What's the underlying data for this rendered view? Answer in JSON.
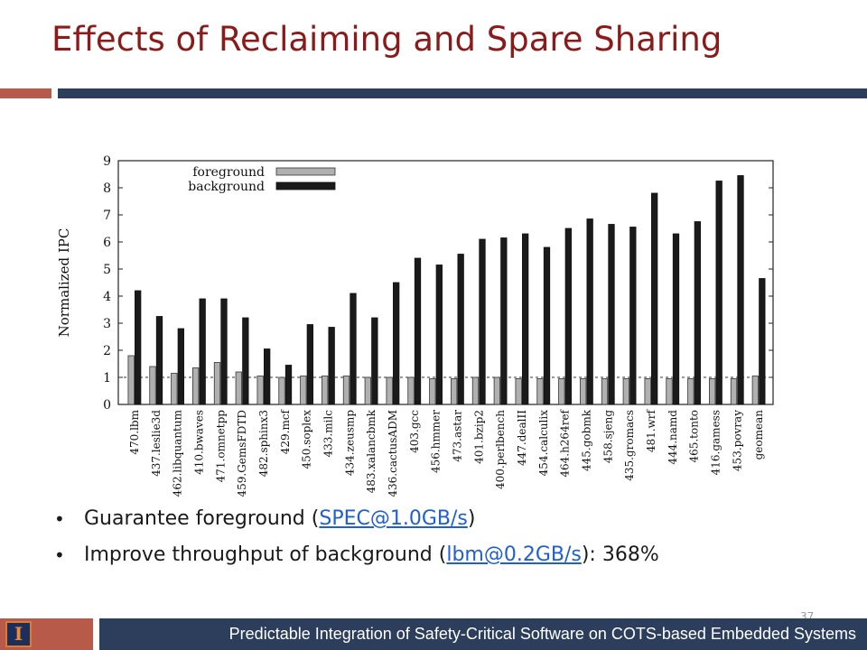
{
  "slide": {
    "title": "Effects of Reclaiming and Spare Sharing",
    "page_number": "37",
    "footer": "Predictable Integration of Safety-Critical Software on COTS-based Embedded Systems",
    "logo_letter": "I"
  },
  "bullets": [
    {
      "prefix": "Guarantee foreground (",
      "link": "SPEC@1.0GB/s",
      "suffix": ")"
    },
    {
      "prefix": "Improve throughput of background (",
      "link": "lbm@0.2GB/s",
      "suffix": "): 368%"
    }
  ],
  "colors": {
    "title": "#8b1a1a",
    "accent_red": "#b85a4a",
    "accent_blue": "#2c3e5c",
    "foreground_bar": "#b0b0b0",
    "background_bar": "#1a1a1a"
  },
  "chart_data": {
    "type": "bar",
    "ylabel": "Normalized IPC",
    "ylim": [
      0,
      9
    ],
    "yticks": [
      0,
      1,
      2,
      3,
      4,
      5,
      6,
      7,
      8,
      9
    ],
    "reference_line": 1,
    "legend_position": "top-left",
    "categories": [
      "470.lbm",
      "437.leslie3d",
      "462.libquantum",
      "410.bwaves",
      "471.omnetpp",
      "459.GemsFDTD",
      "482.sphinx3",
      "429.mcf",
      "450.soplex",
      "433.milc",
      "434.zeusmp",
      "483.xalancbmk",
      "436.cactusADM",
      "403.gcc",
      "456.hmmer",
      "473.astar",
      "401.bzip2",
      "400.perlbench",
      "447.dealII",
      "454.calculix",
      "464.h264ref",
      "445.gobmk",
      "458.sjeng",
      "435.gromacs",
      "481.wrf",
      "444.namd",
      "465.tonto",
      "416.gamess",
      "453.povray",
      "geomean"
    ],
    "series": [
      {
        "name": "foreground",
        "values": [
          1.8,
          1.4,
          1.15,
          1.35,
          1.55,
          1.2,
          1.05,
          1.0,
          1.05,
          1.05,
          1.05,
          1.0,
          1.0,
          1.0,
          0.95,
          0.95,
          1.0,
          1.0,
          0.95,
          0.95,
          0.95,
          0.95,
          0.95,
          0.95,
          0.95,
          0.95,
          0.95,
          0.95,
          0.95,
          1.05
        ]
      },
      {
        "name": "background",
        "values": [
          4.2,
          3.25,
          2.8,
          3.9,
          3.9,
          3.2,
          2.05,
          1.45,
          2.95,
          2.85,
          4.1,
          3.2,
          4.5,
          5.4,
          5.15,
          5.55,
          6.1,
          6.15,
          6.3,
          5.8,
          6.5,
          6.85,
          6.65,
          6.55,
          7.8,
          6.3,
          6.75,
          8.25,
          8.45,
          4.65
        ]
      }
    ]
  }
}
